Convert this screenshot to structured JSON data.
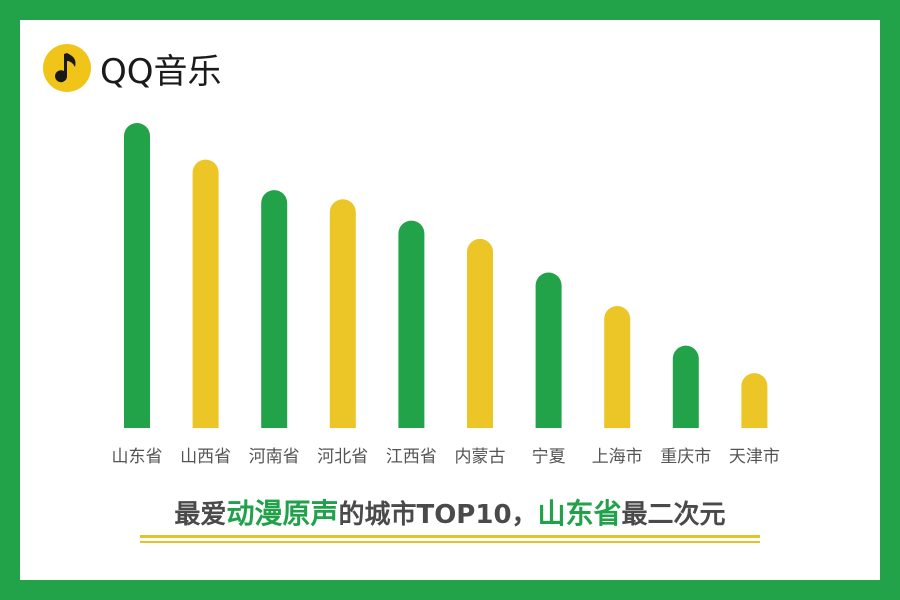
{
  "brand": {
    "name": "QQ音乐",
    "logo_icon": "music-note-icon",
    "logo_color": "#f0c419",
    "logo_note_color": "#1a1a1a"
  },
  "headline": {
    "part1": "最爱",
    "part2": "动漫原声",
    "part3": "的城市TOP10，",
    "part4": "山东省",
    "part5": "最二次元",
    "highlight_color": "#21a24a"
  },
  "colors": {
    "green": "#22a34a",
    "yellow": "#ecc526",
    "underline": "#e5c22a"
  },
  "chart_data": {
    "type": "bar",
    "categories": [
      "山东省",
      "山西省",
      "河南省",
      "河北省",
      "江西省",
      "内蒙古",
      "宁夏",
      "上海市",
      "重庆市",
      "天津市"
    ],
    "values": [
      100,
      88,
      78,
      75,
      68,
      62,
      51,
      40,
      27,
      18
    ],
    "bar_colors": [
      "#22a34a",
      "#ecc526",
      "#22a34a",
      "#ecc526",
      "#22a34a",
      "#ecc526",
      "#22a34a",
      "#ecc526",
      "#22a34a",
      "#ecc526"
    ],
    "title": "",
    "xlabel": "",
    "ylabel": "",
    "ylim": [
      0,
      100
    ],
    "grid": false,
    "legend": "none"
  }
}
